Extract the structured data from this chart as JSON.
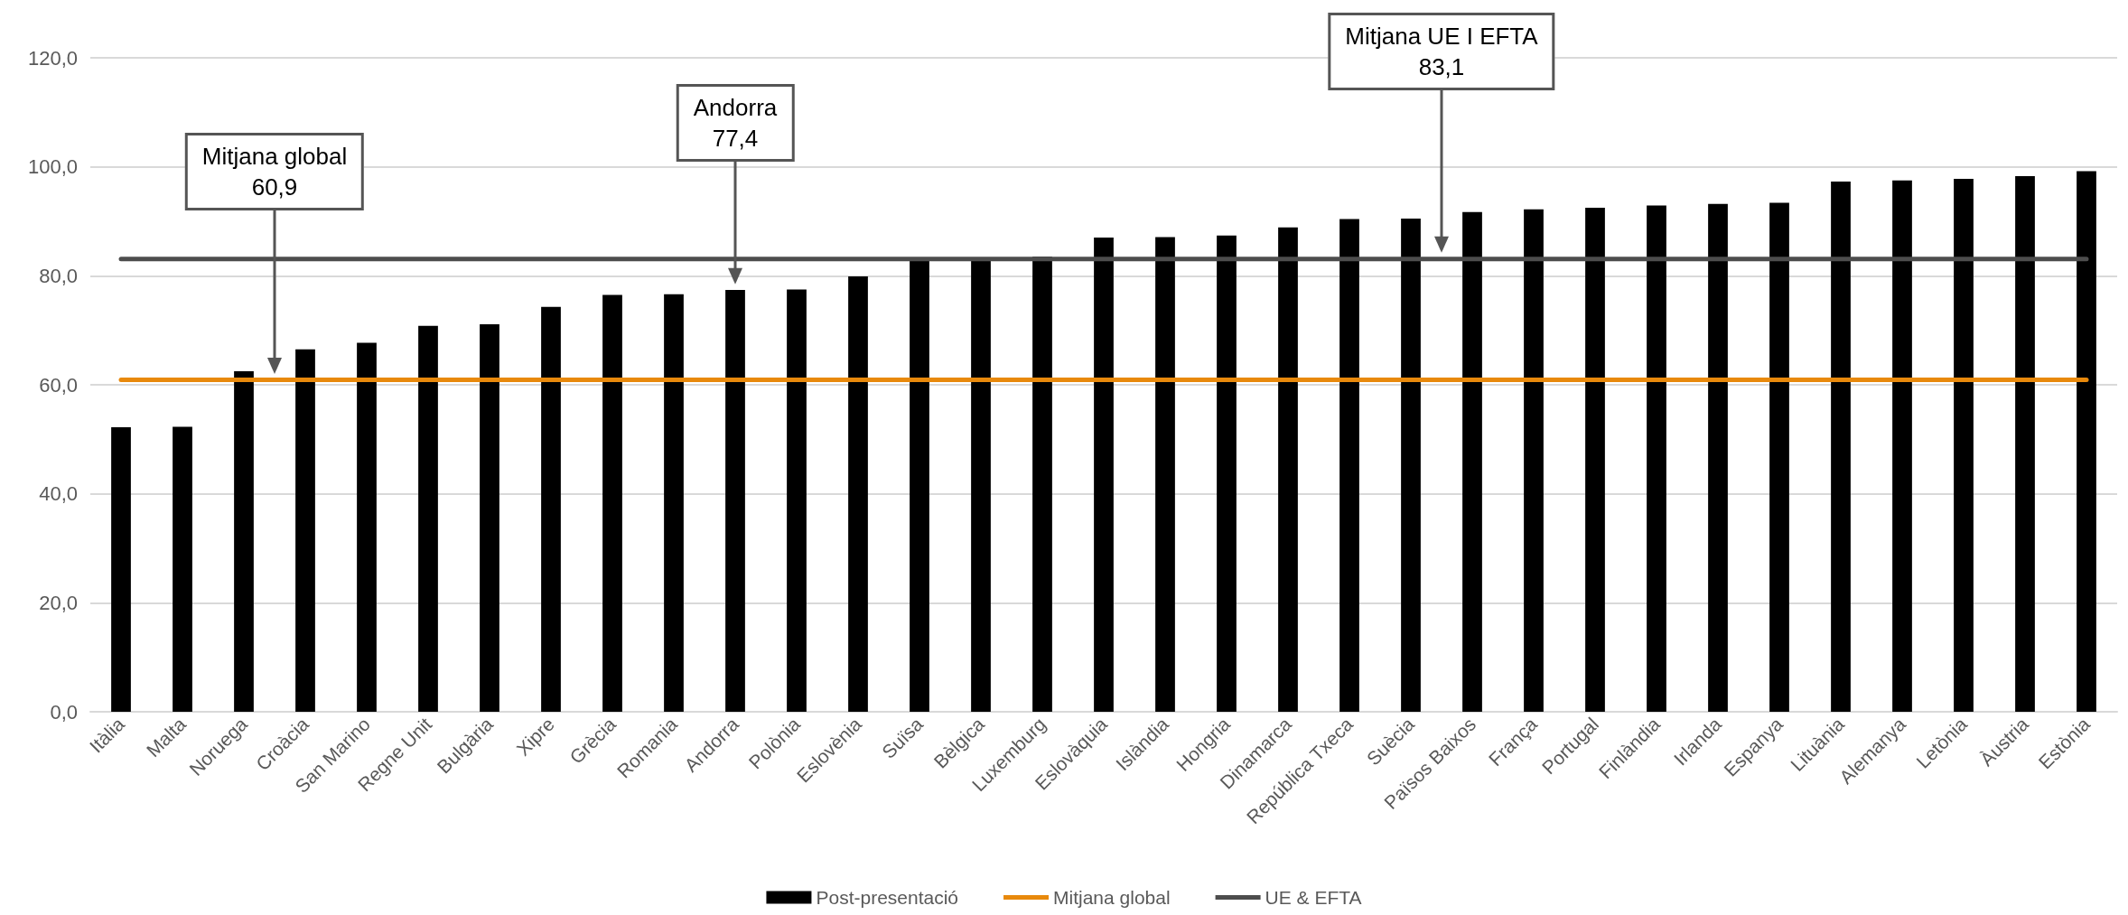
{
  "chart_data": {
    "type": "bar",
    "categories": [
      "Itàlia",
      "Malta",
      "Noruega",
      "Croàcia",
      "San Marino",
      "Regne Unit",
      "Bulgària",
      "Xipre",
      "Grècia",
      "Romania",
      "Andorra",
      "Polònia",
      "Eslovènia",
      "Suïsa",
      "Bèlgica",
      "Luxemburg",
      "Eslovàquia",
      "Islàndia",
      "Hongria",
      "Dinamarca",
      "República Txeca",
      "Suècia",
      "Països Baixos",
      "França",
      "Portugal",
      "Finlàndia",
      "Irlanda",
      "Espanya",
      "Lituània",
      "Alemanya",
      "Letònia",
      "Àustria",
      "Estònia"
    ],
    "series": [
      {
        "name": "Post-presentació",
        "color": "#000000",
        "values": [
          52.2,
          52.3,
          62.5,
          66.5,
          67.7,
          70.8,
          71.1,
          74.3,
          76.5,
          76.6,
          77.4,
          77.5,
          79.9,
          82.7,
          82.7,
          83.5,
          87.0,
          87.1,
          87.4,
          88.9,
          90.4,
          90.5,
          91.7,
          92.2,
          92.5,
          92.9,
          93.2,
          93.4,
          97.3,
          97.5,
          97.8,
          98.3,
          99.2
        ]
      },
      {
        "name": "Mitjana global",
        "type": "line",
        "color": "#e8890c",
        "values": [
          60.9,
          60.9,
          60.9,
          60.9,
          60.9,
          60.9,
          60.9,
          60.9,
          60.9,
          60.9,
          60.9,
          60.9,
          60.9,
          60.9,
          60.9,
          60.9,
          60.9,
          60.9,
          60.9,
          60.9,
          60.9,
          60.9,
          60.9,
          60.9,
          60.9,
          60.9,
          60.9,
          60.9,
          60.9,
          60.9,
          60.9,
          60.9,
          60.9
        ]
      },
      {
        "name": "UE & EFTA",
        "type": "line",
        "color": "#4d4d4d",
        "values": [
          83.1,
          83.1,
          83.1,
          83.1,
          83.1,
          83.1,
          83.1,
          83.1,
          83.1,
          83.1,
          83.1,
          83.1,
          83.1,
          83.1,
          83.1,
          83.1,
          83.1,
          83.1,
          83.1,
          83.1,
          83.1,
          83.1,
          83.1,
          83.1,
          83.1,
          83.1,
          83.1,
          83.1,
          83.1,
          83.1,
          83.1,
          83.1,
          83.1
        ]
      }
    ],
    "ylim": [
      0,
      120
    ],
    "yticks": [
      {
        "value": 0,
        "label": "0,0"
      },
      {
        "value": 20,
        "label": "20,0"
      },
      {
        "value": 40,
        "label": "40,0"
      },
      {
        "value": 60,
        "label": "60,0"
      },
      {
        "value": 80,
        "label": "80,0"
      },
      {
        "value": 100,
        "label": "100,0"
      },
      {
        "value": 120,
        "label": "120,0"
      }
    ],
    "grid": "y",
    "legend": "bottom",
    "marker": "none",
    "line_style": "solid",
    "annotations": [
      "Mitjana global\n60,9",
      "Andorra\n77,4",
      "Mitjana UE I EFTA\n83,1"
    ]
  }
}
